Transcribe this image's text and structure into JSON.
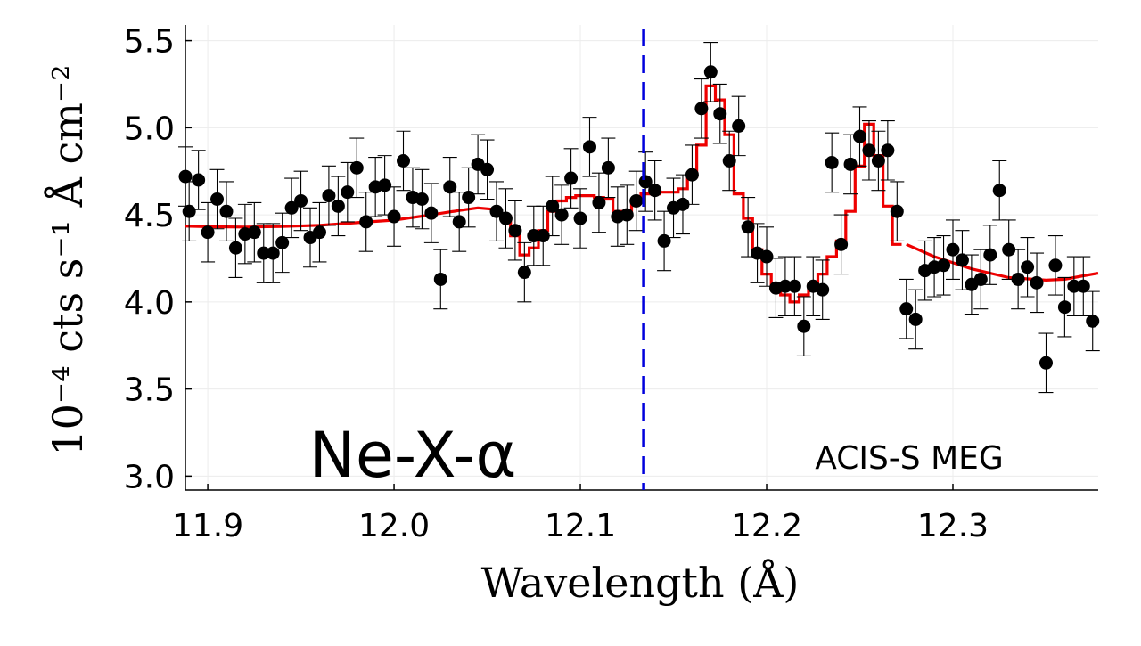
{
  "chart_data": {
    "type": "scatter",
    "title": "",
    "xlabel": "Wavelength (Å)",
    "ylabel": "10⁻⁴ cts s⁻¹ Å cm⁻²",
    "xlim": [
      11.888,
      12.378
    ],
    "ylim": [
      2.92,
      5.59
    ],
    "xticks": [
      11.9,
      12.0,
      12.1,
      12.2,
      12.3
    ],
    "xtick_labels": [
      "11.9",
      "12.0",
      "12.1",
      "12.2",
      "12.3"
    ],
    "yticks": [
      3.0,
      3.5,
      4.0,
      4.5,
      5.0,
      5.5
    ],
    "ytick_labels": [
      "3.0",
      "3.5",
      "4.0",
      "4.5",
      "5.0",
      "5.5"
    ],
    "grid": true,
    "annotations": {
      "line_name": "Ne-X-α",
      "instrument": "ACIS-S MEG"
    },
    "reference_line": {
      "x": 12.134,
      "style": "dashed",
      "color": "#0000dd"
    },
    "series": [
      {
        "name": "data",
        "kind": "points-with-errorbars",
        "color": "#000000",
        "errorbar": 0.17,
        "points": [
          [
            11.888,
            4.72
          ],
          [
            11.89,
            4.52
          ],
          [
            11.895,
            4.7
          ],
          [
            11.9,
            4.4
          ],
          [
            11.905,
            4.59
          ],
          [
            11.91,
            4.52
          ],
          [
            11.915,
            4.31
          ],
          [
            11.92,
            4.39
          ],
          [
            11.925,
            4.4
          ],
          [
            11.93,
            4.28
          ],
          [
            11.935,
            4.28
          ],
          [
            11.94,
            4.34
          ],
          [
            11.945,
            4.54
          ],
          [
            11.95,
            4.58
          ],
          [
            11.955,
            4.37
          ],
          [
            11.96,
            4.4
          ],
          [
            11.965,
            4.61
          ],
          [
            11.97,
            4.55
          ],
          [
            11.975,
            4.63
          ],
          [
            11.98,
            4.77
          ],
          [
            11.985,
            4.46
          ],
          [
            11.99,
            4.66
          ],
          [
            11.995,
            4.67
          ],
          [
            12.0,
            4.49
          ],
          [
            12.005,
            4.81
          ],
          [
            12.01,
            4.6
          ],
          [
            12.015,
            4.59
          ],
          [
            12.02,
            4.51
          ],
          [
            12.025,
            4.13
          ],
          [
            12.03,
            4.66
          ],
          [
            12.035,
            4.46
          ],
          [
            12.04,
            4.6
          ],
          [
            12.045,
            4.79
          ],
          [
            12.05,
            4.76
          ],
          [
            12.055,
            4.52
          ],
          [
            12.06,
            4.48
          ],
          [
            12.065,
            4.41
          ],
          [
            12.07,
            4.17
          ],
          [
            12.075,
            4.38
          ],
          [
            12.08,
            4.38
          ],
          [
            12.085,
            4.55
          ],
          [
            12.09,
            4.5
          ],
          [
            12.095,
            4.71
          ],
          [
            12.1,
            4.48
          ],
          [
            12.105,
            4.89
          ],
          [
            12.11,
            4.57
          ],
          [
            12.115,
            4.77
          ],
          [
            12.12,
            4.49
          ],
          [
            12.125,
            4.5
          ],
          [
            12.13,
            4.58
          ],
          [
            12.135,
            4.69
          ],
          [
            12.14,
            4.64
          ],
          [
            12.145,
            4.35
          ],
          [
            12.15,
            4.54
          ],
          [
            12.155,
            4.56
          ],
          [
            12.16,
            4.73
          ],
          [
            12.165,
            5.11
          ],
          [
            12.17,
            5.32
          ],
          [
            12.175,
            5.08
          ],
          [
            12.18,
            4.81
          ],
          [
            12.185,
            5.01
          ],
          [
            12.19,
            4.43
          ],
          [
            12.195,
            4.28
          ],
          [
            12.2,
            4.26
          ],
          [
            12.205,
            4.08
          ],
          [
            12.21,
            4.09
          ],
          [
            12.215,
            4.09
          ],
          [
            12.22,
            3.86
          ],
          [
            12.225,
            4.09
          ],
          [
            12.23,
            4.07
          ],
          [
            12.235,
            4.8
          ],
          [
            12.24,
            4.33
          ],
          [
            12.245,
            4.79
          ],
          [
            12.25,
            4.95
          ],
          [
            12.255,
            4.87
          ],
          [
            12.26,
            4.81
          ],
          [
            12.265,
            4.87
          ],
          [
            12.27,
            4.52
          ],
          [
            12.275,
            3.96
          ],
          [
            12.28,
            3.9
          ],
          [
            12.285,
            4.18
          ],
          [
            12.29,
            4.2
          ],
          [
            12.295,
            4.21
          ],
          [
            12.3,
            4.3
          ],
          [
            12.305,
            4.24
          ],
          [
            12.31,
            4.1
          ],
          [
            12.315,
            4.13
          ],
          [
            12.32,
            4.27
          ],
          [
            12.325,
            4.64
          ],
          [
            12.33,
            4.3
          ],
          [
            12.335,
            4.13
          ],
          [
            12.34,
            4.2
          ],
          [
            12.345,
            4.11
          ],
          [
            12.35,
            3.65
          ],
          [
            12.355,
            4.21
          ],
          [
            12.36,
            3.97
          ],
          [
            12.365,
            4.09
          ],
          [
            12.37,
            4.09
          ],
          [
            12.375,
            3.89
          ]
        ]
      },
      {
        "name": "model",
        "kind": "line",
        "color": "#ee0000",
        "points": [
          [
            11.888,
            4.435
          ],
          [
            11.9,
            4.432
          ],
          [
            11.92,
            4.43
          ],
          [
            11.94,
            4.433
          ],
          [
            11.96,
            4.44
          ],
          [
            11.98,
            4.455
          ],
          [
            12.0,
            4.47
          ],
          [
            12.02,
            4.5
          ],
          [
            12.035,
            4.525
          ],
          [
            12.045,
            4.54
          ],
          [
            12.055,
            4.53
          ]
        ]
      },
      {
        "name": "model-steps",
        "kind": "step",
        "color": "#ee0000",
        "step_width": 0.005,
        "values": [
          [
            12.06,
            4.49
          ],
          [
            12.065,
            4.38
          ],
          [
            12.07,
            4.27
          ],
          [
            12.075,
            4.31
          ],
          [
            12.08,
            4.41
          ],
          [
            12.085,
            4.52
          ],
          [
            12.09,
            4.58
          ],
          [
            12.095,
            4.6
          ],
          [
            12.1,
            4.61
          ],
          [
            12.105,
            4.61
          ],
          [
            12.11,
            4.6
          ],
          [
            12.115,
            4.59
          ],
          [
            12.12,
            4.52
          ],
          [
            12.125,
            4.49
          ],
          [
            12.13,
            4.58
          ],
          [
            12.135,
            4.62
          ],
          [
            12.14,
            4.62
          ],
          [
            12.145,
            4.63
          ],
          [
            12.15,
            4.63
          ],
          [
            12.155,
            4.65
          ],
          [
            12.16,
            4.72
          ],
          [
            12.165,
            4.9
          ],
          [
            12.17,
            5.24
          ],
          [
            12.175,
            5.16
          ],
          [
            12.18,
            4.96
          ],
          [
            12.185,
            4.62
          ],
          [
            12.19,
            4.48
          ],
          [
            12.195,
            4.3
          ],
          [
            12.2,
            4.16
          ],
          [
            12.205,
            4.09
          ],
          [
            12.21,
            4.04
          ],
          [
            12.215,
            4.0
          ],
          [
            12.22,
            4.04
          ],
          [
            12.225,
            4.1
          ],
          [
            12.23,
            4.16
          ],
          [
            12.235,
            4.26
          ],
          [
            12.24,
            4.35
          ],
          [
            12.245,
            4.52
          ],
          [
            12.25,
            4.78
          ],
          [
            12.255,
            5.02
          ],
          [
            12.26,
            4.84
          ],
          [
            12.265,
            4.55
          ],
          [
            12.27,
            4.33
          ]
        ]
      },
      {
        "name": "model-tail",
        "kind": "line",
        "color": "#ee0000",
        "points": [
          [
            12.275,
            4.33
          ],
          [
            12.29,
            4.26
          ],
          [
            12.31,
            4.19
          ],
          [
            12.33,
            4.14
          ],
          [
            12.35,
            4.125
          ],
          [
            12.36,
            4.13
          ],
          [
            12.37,
            4.15
          ],
          [
            12.378,
            4.165
          ]
        ]
      }
    ]
  }
}
